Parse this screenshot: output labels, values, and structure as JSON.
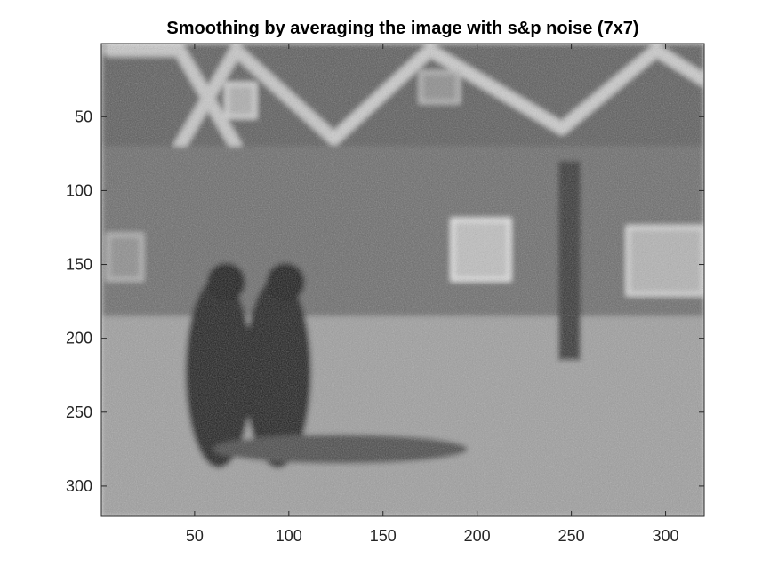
{
  "chart_data": {
    "type": "image",
    "title": "Smoothing by averaging the image with s&p noise (7x7)",
    "xlabel": "",
    "ylabel": "",
    "xlim": [
      0.5,
      320.5
    ],
    "ylim": [
      0.5,
      320.5
    ],
    "y_direction": "reverse",
    "colormap": "gray",
    "grid": false,
    "xticks": [
      50,
      100,
      150,
      200,
      250,
      300
    ],
    "yticks": [
      50,
      100,
      150,
      200,
      250,
      300
    ],
    "xtick_labels": [
      "50",
      "100",
      "150",
      "200",
      "250",
      "300"
    ],
    "ytick_labels": [
      "50",
      "100",
      "150",
      "200",
      "250",
      "300"
    ],
    "scene_objects": [
      {
        "kind": "house-roof-gable",
        "x": [
          5,
          42,
          72
        ],
        "y": [
          5,
          5,
          70
        ],
        "shade": 0.78
      },
      {
        "kind": "house-roof-gable",
        "x": [
          42,
          72,
          124
        ],
        "y": [
          70,
          5,
          65
        ],
        "shade": 0.78
      },
      {
        "kind": "house-roof-gable",
        "x": [
          124,
          175,
          245
        ],
        "y": [
          65,
          5,
          58
        ],
        "shade": 0.8
      },
      {
        "kind": "house-roof-gable",
        "x": [
          245,
          295,
          320
        ],
        "y": [
          58,
          5,
          25
        ],
        "shade": 0.8
      },
      {
        "kind": "house-wall",
        "x": [
          1,
          320
        ],
        "y": [
          70,
          185
        ],
        "shade": 0.42
      },
      {
        "kind": "ground",
        "x": [
          1,
          320
        ],
        "y": [
          185,
          320
        ],
        "shade": 0.62
      },
      {
        "kind": "window",
        "x": [
          187,
          217
        ],
        "y": [
          120,
          160
        ],
        "shade": 0.75
      },
      {
        "kind": "window",
        "x": [
          280,
          320
        ],
        "y": [
          125,
          170
        ],
        "shade": 0.7
      },
      {
        "kind": "window",
        "x": [
          4,
          22
        ],
        "y": [
          130,
          160
        ],
        "shade": 0.55
      },
      {
        "kind": "window",
        "x": [
          67,
          82
        ],
        "y": [
          28,
          50
        ],
        "shade": 0.68
      },
      {
        "kind": "window",
        "x": [
          170,
          190
        ],
        "y": [
          20,
          40
        ],
        "shade": 0.55
      },
      {
        "kind": "pole",
        "x": [
          243,
          255
        ],
        "y": [
          80,
          215
        ],
        "shade": 0.2
      },
      {
        "kind": "person-pair",
        "x": [
          45,
          112
        ],
        "y": [
          150,
          280
        ],
        "shade": 0.12
      },
      {
        "kind": "shadow",
        "x": [
          60,
          195
        ],
        "y": [
          265,
          285
        ],
        "shade": 0.28
      }
    ]
  }
}
